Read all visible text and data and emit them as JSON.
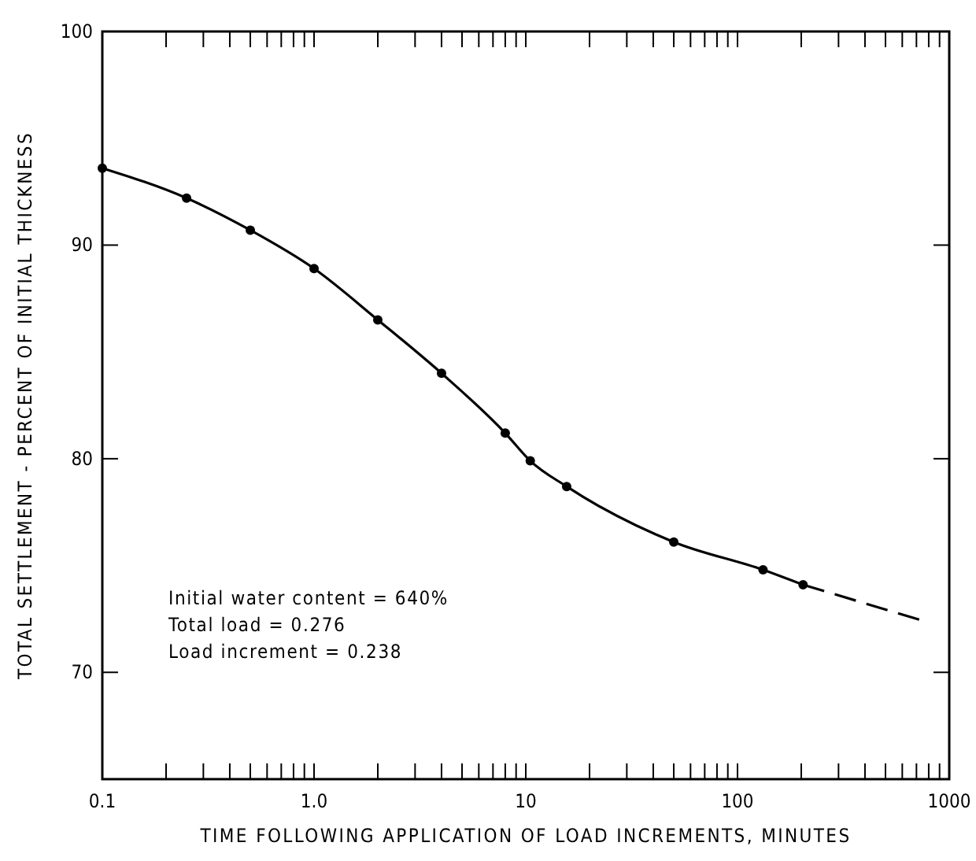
{
  "chart_data": {
    "type": "line",
    "xlabel": "TIME FOLLOWING APPLICATION OF LOAD INCREMENTS, MINUTES",
    "ylabel": "TOTAL SETTLEMENT - PERCENT OF INITIAL THICKNESS",
    "log": "x",
    "xlim": [
      0.1,
      1000
    ],
    "ylim": [
      65,
      100
    ],
    "xticks": [
      0.1,
      {
        "value": 0.2,
        "label": null
      },
      {
        "value": 0.3,
        "label": null
      },
      {
        "value": 0.4,
        "label": null
      },
      {
        "value": 0.5,
        "label": null
      },
      {
        "value": 0.6,
        "label": null
      },
      {
        "value": 0.7,
        "label": null
      },
      {
        "value": 0.8,
        "label": null
      },
      {
        "value": 0.9,
        "label": null
      },
      {
        "value": 1,
        "label": "1.0"
      },
      {
        "value": 2,
        "label": null
      },
      {
        "value": 3,
        "label": null
      },
      {
        "value": 4,
        "label": null
      },
      {
        "value": 5,
        "label": null
      },
      {
        "value": 6,
        "label": null
      },
      {
        "value": 7,
        "label": null
      },
      {
        "value": 8,
        "label": null
      },
      {
        "value": 9,
        "label": null
      },
      10,
      {
        "value": 20,
        "label": null
      },
      {
        "value": 30,
        "label": null
      },
      {
        "value": 40,
        "label": null
      },
      {
        "value": 50,
        "label": null
      },
      {
        "value": 60,
        "label": null
      },
      {
        "value": 70,
        "label": null
      },
      {
        "value": 80,
        "label": null
      },
      {
        "value": 90,
        "label": null
      },
      100,
      {
        "value": 200,
        "label": null
      },
      {
        "value": 300,
        "label": null
      },
      {
        "value": 400,
        "label": null
      },
      {
        "value": 500,
        "label": null
      },
      {
        "value": 600,
        "label": null
      },
      {
        "value": 700,
        "label": null
      },
      {
        "value": 800,
        "label": null
      },
      {
        "value": 900,
        "label": null
      },
      1000
    ],
    "yticks": [
      70,
      80,
      90,
      100
    ],
    "series": [
      {
        "color": "#000000",
        "marker": "circle",
        "line_style": "solid",
        "x": [
          0.1,
          0.25,
          0.5,
          1,
          2,
          4,
          8,
          10.5,
          15.6,
          50,
          132,
          204
        ],
        "values": [
          93.6,
          92.2,
          90.7,
          88.9,
          86.5,
          84.0,
          81.2,
          79.9,
          78.7,
          76.1,
          74.8,
          74.1
        ]
      },
      {
        "color": "#000000",
        "marker": "none",
        "line_style": "dashed",
        "x": [
          204,
          760
        ],
        "values": [
          74.1,
          72.4
        ]
      }
    ],
    "annotations": [
      "Initial water content = 640%",
      "Total load = 0.276",
      "Load increment = 0.238"
    ]
  }
}
